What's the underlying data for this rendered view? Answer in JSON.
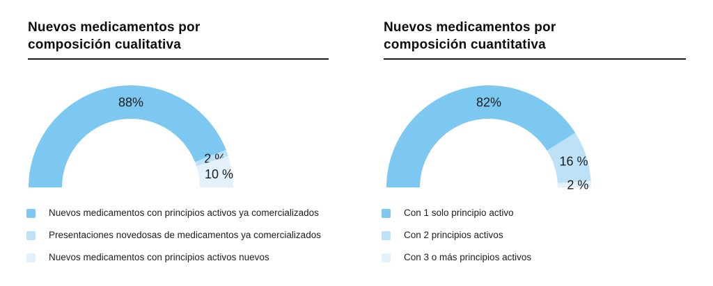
{
  "page": {
    "background": "#ffffff",
    "text_color": "#1d1d1b",
    "rule_color": "#1a1a1a"
  },
  "chart_data": [
    {
      "type": "pie",
      "variant": "half-donut",
      "title_lines": [
        "Nuevos medicamentos por",
        "composición cualitativa"
      ],
      "unit": "%",
      "total": 100,
      "start_angle_deg": 180,
      "sweep_deg": 180,
      "direction": "clockwise",
      "legend_position": "bottom-left",
      "segments": [
        {
          "label": "Nuevos medicamentos con principios activos ya comercializados",
          "value": 88,
          "display": "88%",
          "color": "#7DC8F0"
        },
        {
          "label": "Presentaciones novedosas de medicamentos ya comercializados",
          "value": 2,
          "display": "2 %",
          "color": "#BDE2F8"
        },
        {
          "label": "Nuevos medicamentos con principios activos nuevos",
          "value": 10,
          "display": "10 %",
          "color": "#E3F1FC"
        }
      ]
    },
    {
      "type": "pie",
      "variant": "half-donut",
      "title_lines": [
        "Nuevos medicamentos por",
        "composición cuantitativa"
      ],
      "unit": "%",
      "total": 100,
      "start_angle_deg": 180,
      "sweep_deg": 180,
      "direction": "clockwise",
      "legend_position": "bottom-left",
      "segments": [
        {
          "label": "Con 1 solo principio activo",
          "value": 82,
          "display": "82%",
          "color": "#7DC8F0"
        },
        {
          "label": "Con 2 principios activos",
          "value": 16,
          "display": "16 %",
          "color": "#BDE2F8"
        },
        {
          "label": "Con 3 o más principios activos",
          "value": 2,
          "display": "2 %",
          "color": "#E3F1FC"
        }
      ]
    }
  ]
}
